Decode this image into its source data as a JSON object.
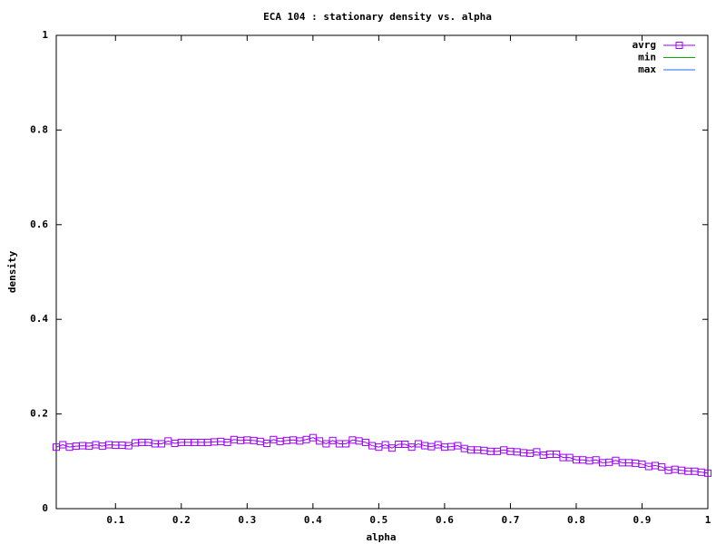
{
  "chart_data": {
    "type": "line",
    "title": "ECA 104 : stationary density vs. alpha",
    "x_label": "alpha",
    "y_label": "density",
    "x": [
      0.01,
      0.02,
      0.03,
      0.04,
      0.05,
      0.06,
      0.07,
      0.08,
      0.09,
      0.1,
      0.11,
      0.12,
      0.13,
      0.14,
      0.15,
      0.16,
      0.17,
      0.18,
      0.19,
      0.2,
      0.21,
      0.22,
      0.23,
      0.24,
      0.25,
      0.26,
      0.27,
      0.28,
      0.29,
      0.3,
      0.31,
      0.32,
      0.33,
      0.34,
      0.35,
      0.36,
      0.37,
      0.38,
      0.39,
      0.4,
      0.41,
      0.42,
      0.43,
      0.44,
      0.45,
      0.46,
      0.47,
      0.48,
      0.49,
      0.5,
      0.51,
      0.52,
      0.53,
      0.54,
      0.55,
      0.56,
      0.57,
      0.58,
      0.59,
      0.6,
      0.61,
      0.62,
      0.63,
      0.64,
      0.65,
      0.66,
      0.67,
      0.68,
      0.69,
      0.7,
      0.71,
      0.72,
      0.73,
      0.74,
      0.75,
      0.76,
      0.77,
      0.78,
      0.79,
      0.8,
      0.81,
      0.82,
      0.83,
      0.84,
      0.85,
      0.86,
      0.87,
      0.88,
      0.89,
      0.9,
      0.91,
      0.92,
      0.93,
      0.94,
      0.95,
      0.96,
      0.97,
      0.98,
      0.99,
      1
    ],
    "series": [
      {
        "name": "avrg",
        "color": "#9a00ff",
        "marker": "square",
        "values": [
          0.13,
          0.135,
          0.13,
          0.132,
          0.133,
          0.132,
          0.135,
          0.132,
          0.135,
          0.134,
          0.134,
          0.133,
          0.139,
          0.14,
          0.14,
          0.137,
          0.137,
          0.143,
          0.138,
          0.14,
          0.14,
          0.14,
          0.14,
          0.14,
          0.141,
          0.142,
          0.14,
          0.146,
          0.144,
          0.145,
          0.144,
          0.142,
          0.138,
          0.146,
          0.142,
          0.144,
          0.145,
          0.143,
          0.146,
          0.15,
          0.143,
          0.137,
          0.144,
          0.137,
          0.137,
          0.145,
          0.143,
          0.14,
          0.133,
          0.13,
          0.135,
          0.128,
          0.136,
          0.136,
          0.13,
          0.137,
          0.133,
          0.131,
          0.135,
          0.13,
          0.131,
          0.133,
          0.127,
          0.124,
          0.124,
          0.123,
          0.121,
          0.121,
          0.124,
          0.121,
          0.12,
          0.118,
          0.117,
          0.12,
          0.113,
          0.115,
          0.115,
          0.108,
          0.108,
          0.103,
          0.103,
          0.101,
          0.103,
          0.097,
          0.098,
          0.102,
          0.097,
          0.097,
          0.096,
          0.094,
          0.089,
          0.091,
          0.088,
          0.081,
          0.083,
          0.081,
          0.079,
          0.079,
          0.077,
          0.075
        ]
      },
      {
        "name": "min",
        "color": "#00b000",
        "values": [
          null,
          null,
          null,
          null,
          null,
          null,
          null,
          null,
          null,
          null,
          null,
          null,
          null,
          null,
          null,
          null,
          null,
          null,
          null,
          null,
          null,
          null,
          null,
          null,
          null,
          null,
          null,
          null,
          null,
          null,
          null,
          null,
          null,
          null,
          null,
          null,
          null,
          null,
          null,
          null,
          null,
          null,
          null,
          null,
          null,
          null,
          null,
          null,
          null,
          null,
          null,
          null,
          null,
          null,
          null,
          null,
          null,
          null,
          null,
          null,
          null,
          null,
          null,
          null,
          null,
          null,
          null,
          null,
          null,
          null,
          null,
          null,
          null,
          null,
          null,
          null,
          null,
          null,
          null,
          null,
          null,
          null,
          null,
          null,
          null,
          null,
          null,
          null,
          null,
          null,
          null,
          null,
          null,
          null,
          null,
          null,
          null,
          null,
          null,
          null
        ]
      },
      {
        "name": "max",
        "color": "#1e6cff",
        "values": [
          null,
          null,
          null,
          null,
          null,
          null,
          null,
          null,
          null,
          null,
          null,
          null,
          null,
          null,
          null,
          null,
          null,
          null,
          null,
          null,
          null,
          null,
          null,
          null,
          null,
          null,
          null,
          null,
          null,
          null,
          null,
          null,
          null,
          null,
          null,
          null,
          null,
          null,
          null,
          null,
          null,
          null,
          null,
          null,
          null,
          null,
          null,
          null,
          null,
          null,
          null,
          null,
          null,
          null,
          null,
          null,
          null,
          null,
          null,
          null,
          null,
          null,
          null,
          null,
          null,
          null,
          null,
          null,
          null,
          null,
          null,
          null,
          null,
          null,
          null,
          null,
          null,
          null,
          null,
          null,
          null,
          null,
          null,
          null,
          null,
          null,
          null,
          null,
          null,
          null,
          null,
          null,
          null,
          null,
          null,
          null,
          null,
          null,
          null,
          null
        ]
      }
    ],
    "xlim": [
      0.01,
      1
    ],
    "ylim": [
      0,
      1
    ],
    "xticks": [
      0.1,
      0.2,
      0.3,
      0.4,
      0.5,
      0.6,
      0.7,
      0.8,
      0.9,
      1
    ],
    "yticks": [
      0,
      0.2,
      0.4,
      0.6,
      0.8,
      1
    ],
    "legend": "upper-right"
  }
}
